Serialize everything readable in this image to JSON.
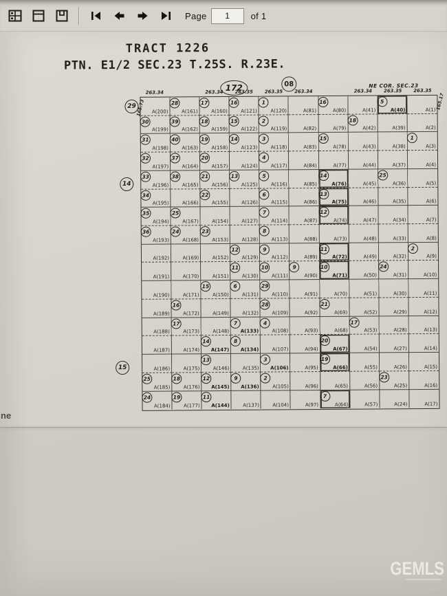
{
  "toolbar": {
    "page_label": "Page",
    "page_value": "1",
    "of_label": "of 1"
  },
  "page_edge_text": "ne",
  "watermark": "GEMLS",
  "map": {
    "title": "TRACT 1226",
    "subtitle": "PTN. E1/2 SEC.23 T.25S. R.23E.",
    "oval_label": "172",
    "circle_label": "08",
    "ne_corner": "NE COR. SEC.23",
    "dim_left_vertical": "165.73",
    "dim_right_vertical": "165.17",
    "top_dims": [
      {
        "col": 0,
        "t": "263.34"
      },
      {
        "col": 2,
        "t": "263.34"
      },
      {
        "col": 3,
        "t": "263.35"
      },
      {
        "col": 4,
        "t": "263.35"
      },
      {
        "col": 5,
        "t": "263.34"
      },
      {
        "col": 7,
        "t": "263.34"
      },
      {
        "col": 8,
        "t": "263.35"
      },
      {
        "col": 9,
        "t": "263.35"
      }
    ],
    "outside_circles": [
      {
        "label": "29"
      },
      {
        "label": "14"
      },
      {
        "label": "15"
      }
    ],
    "rows": [
      [
        {
          "n": "A(200)"
        },
        {
          "c": "28",
          "n": "A(161)"
        },
        {
          "c": "17",
          "n": "A(160)"
        },
        {
          "c": "16",
          "n": "A(121)"
        },
        {
          "c": "1",
          "n": "A(120)"
        },
        {
          "n": "A(81)"
        },
        {
          "c": "16",
          "n": "A(80)"
        },
        {
          "n": "A(41)"
        },
        {
          "c": "5",
          "n": "A(40)",
          "b": true,
          "hl": true
        },
        {
          "n": "A(1)"
        }
      ],
      [
        {
          "c": "30",
          "n": "A(199)"
        },
        {
          "c": "39",
          "n": "A(162)"
        },
        {
          "c": "18",
          "n": "A(159)"
        },
        {
          "c": "15",
          "n": "A(122)"
        },
        {
          "c": "2",
          "n": "A(119)"
        },
        {
          "n": "A(82)"
        },
        {
          "n": "A(79)"
        },
        {
          "c": "18",
          "n": "A(42)"
        },
        {
          "n": "A(39)"
        },
        {
          "n": "A(2)"
        }
      ],
      [
        {
          "c": "31",
          "n": "A(198)"
        },
        {
          "c": "40",
          "n": "A(163)"
        },
        {
          "c": "19",
          "n": "A(158)"
        },
        {
          "c": "14",
          "n": "A(123)"
        },
        {
          "c": "3",
          "n": "A(118)"
        },
        {
          "n": "A(83)"
        },
        {
          "c": "15",
          "n": "A(78)"
        },
        {
          "n": "A(43)"
        },
        {
          "n": "A(38)"
        },
        {
          "c": "1",
          "n": "A(3)"
        }
      ],
      [
        {
          "c": "32",
          "n": "A(197)"
        },
        {
          "c": "37",
          "n": "A(164)"
        },
        {
          "c": "20",
          "n": "A(157)"
        },
        {
          "n": "A(124)"
        },
        {
          "c": "4",
          "n": "A(117)"
        },
        {
          "n": "A(84)"
        },
        {
          "n": "A(77)"
        },
        {
          "n": "A(44)"
        },
        {
          "n": "A(37)"
        },
        {
          "n": "A(4)"
        }
      ],
      [
        {
          "c": "33",
          "n": "A(196)"
        },
        {
          "c": "38",
          "n": "A(165)"
        },
        {
          "c": "21",
          "n": "A(156)"
        },
        {
          "c": "13",
          "n": "A(125)"
        },
        {
          "c": "5",
          "n": "A(116)"
        },
        {
          "n": "A(85)"
        },
        {
          "c": "14",
          "n": "A(76)",
          "b": true,
          "hl": true
        },
        {
          "n": "A(45)"
        },
        {
          "c": "25",
          "n": "A(36)"
        },
        {
          "n": "A(5)"
        }
      ],
      [
        {
          "c": "34",
          "n": "A(195)"
        },
        {
          "n": "A(166)"
        },
        {
          "c": "22",
          "n": "A(155)"
        },
        {
          "n": "A(126)"
        },
        {
          "c": "6",
          "n": "A(115)"
        },
        {
          "n": "A(86)"
        },
        {
          "c": "13",
          "n": "A(75)",
          "b": true,
          "hl": true
        },
        {
          "n": "A(46)"
        },
        {
          "n": "A(35)"
        },
        {
          "n": "A(6)"
        }
      ],
      [
        {
          "c": "35",
          "n": "A(194)"
        },
        {
          "c": "25",
          "n": "A(167)"
        },
        {
          "n": "A(154)"
        },
        {
          "n": "A(127)"
        },
        {
          "c": "7",
          "n": "A(114)"
        },
        {
          "n": "A(87)"
        },
        {
          "c": "12",
          "n": "A(74)",
          "hl": true
        },
        {
          "n": "A(47)"
        },
        {
          "n": "A(34)"
        },
        {
          "n": "A(7)"
        }
      ],
      [
        {
          "c": "36",
          "n": "A(193)"
        },
        {
          "c": "24",
          "n": "A(168)"
        },
        {
          "c": "23",
          "n": "A(153)"
        },
        {
          "n": "A(128)"
        },
        {
          "c": "8",
          "n": "A(113)"
        },
        {
          "n": "A(88)"
        },
        {
          "n": "A(73)"
        },
        {
          "n": "A(48)"
        },
        {
          "n": "A(33)"
        },
        {
          "n": "A(8)"
        }
      ],
      [
        {
          "n": "A(192)"
        },
        {
          "n": "A(169)"
        },
        {
          "n": "A(152)"
        },
        {
          "c": "12",
          "n": "A(129)"
        },
        {
          "c": "9",
          "n": "A(112)"
        },
        {
          "n": "A(89)"
        },
        {
          "c": "11",
          "n": "A(72)",
          "b": true,
          "hl": true
        },
        {
          "n": "A(49)"
        },
        {
          "n": "A(32)"
        },
        {
          "c": "2",
          "n": "A(9)"
        }
      ],
      [
        {
          "n": "A(191)"
        },
        {
          "n": "A(170)"
        },
        {
          "n": "A(151)"
        },
        {
          "c": "11",
          "n": "A(130)"
        },
        {
          "c": "10",
          "n": "A(111)"
        },
        {
          "c": "9",
          "n": "A(90)"
        },
        {
          "c": "10",
          "n": "A(71)",
          "b": true,
          "hl": true
        },
        {
          "n": "A(50)"
        },
        {
          "c": "24",
          "n": "A(31)"
        },
        {
          "n": "A(10)"
        }
      ],
      [
        {
          "n": "A(190)"
        },
        {
          "n": "A(171)"
        },
        {
          "c": "15",
          "n": "A(150)"
        },
        {
          "c": "6",
          "n": "A(131)"
        },
        {
          "c": "29",
          "n": "A(110)"
        },
        {
          "n": "A(91)"
        },
        {
          "n": "A(70)"
        },
        {
          "n": "A(51)"
        },
        {
          "n": "A(30)"
        },
        {
          "n": "A(11)"
        }
      ],
      [
        {
          "n": "A(189)"
        },
        {
          "c": "16",
          "n": "A(172)"
        },
        {
          "n": "A(149)"
        },
        {
          "n": "A(132)"
        },
        {
          "c": "28",
          "n": "A(109)"
        },
        {
          "n": "A(92)"
        },
        {
          "c": "21",
          "n": "A(69)"
        },
        {
          "n": "A(52)"
        },
        {
          "n": "A(29)"
        },
        {
          "n": "A(12)"
        }
      ],
      [
        {
          "n": "A(188)"
        },
        {
          "c": "17",
          "n": "A(173)"
        },
        {
          "n": "A(148)"
        },
        {
          "c": "7",
          "n": "A(133)",
          "b": true
        },
        {
          "c": "4",
          "n": "A(108)"
        },
        {
          "n": "A(93)"
        },
        {
          "n": "A(68)"
        },
        {
          "c": "17",
          "n": "A(53)"
        },
        {
          "n": "A(28)"
        },
        {
          "n": "A(13)"
        }
      ],
      [
        {
          "n": "A(187)"
        },
        {
          "n": "A(174)"
        },
        {
          "c": "14",
          "n": "A(147)",
          "b": true
        },
        {
          "c": "8",
          "n": "A(134)",
          "b": true
        },
        {
          "n": "A(107)"
        },
        {
          "n": "A(94)"
        },
        {
          "c": "20",
          "n": "A(67)",
          "b": true,
          "hl": true
        },
        {
          "n": "A(54)"
        },
        {
          "n": "A(27)"
        },
        {
          "n": "A(14)"
        }
      ],
      [
        {
          "n": "A(186)"
        },
        {
          "n": "A(175)"
        },
        {
          "c": "13",
          "n": "A(146)"
        },
        {
          "n": "A(135)"
        },
        {
          "c": "3",
          "n": "A(106)",
          "b": true
        },
        {
          "n": "A(95)"
        },
        {
          "c": "19",
          "n": "A(66)",
          "b": true,
          "hl": true
        },
        {
          "n": "A(55)"
        },
        {
          "n": "A(26)"
        },
        {
          "n": "A(15)"
        }
      ],
      [
        {
          "c": "25",
          "n": "A(185)"
        },
        {
          "c": "18",
          "n": "A(176)"
        },
        {
          "c": "12",
          "n": "A(145)",
          "b": true
        },
        {
          "c": "9",
          "n": "A(136)",
          "b": true
        },
        {
          "c": "2",
          "n": "A(105)"
        },
        {
          "n": "A(96)"
        },
        {
          "n": "A(65)"
        },
        {
          "n": "A(56)"
        },
        {
          "c": "23",
          "n": "A(25)"
        },
        {
          "n": "A(16)"
        }
      ],
      [
        {
          "c": "24",
          "n": "A(184)"
        },
        {
          "c": "19",
          "n": "A(177)"
        },
        {
          "c": "11",
          "n": "A(144)",
          "b": true
        },
        {
          "n": "A(137)"
        },
        {
          "n": "A(104)"
        },
        {
          "n": "A(97)"
        },
        {
          "c": "7",
          "n": "A(64)",
          "hl": true
        },
        {
          "n": "A(57)"
        },
        {
          "n": "A(24)"
        },
        {
          "n": "A(17)"
        }
      ]
    ]
  }
}
